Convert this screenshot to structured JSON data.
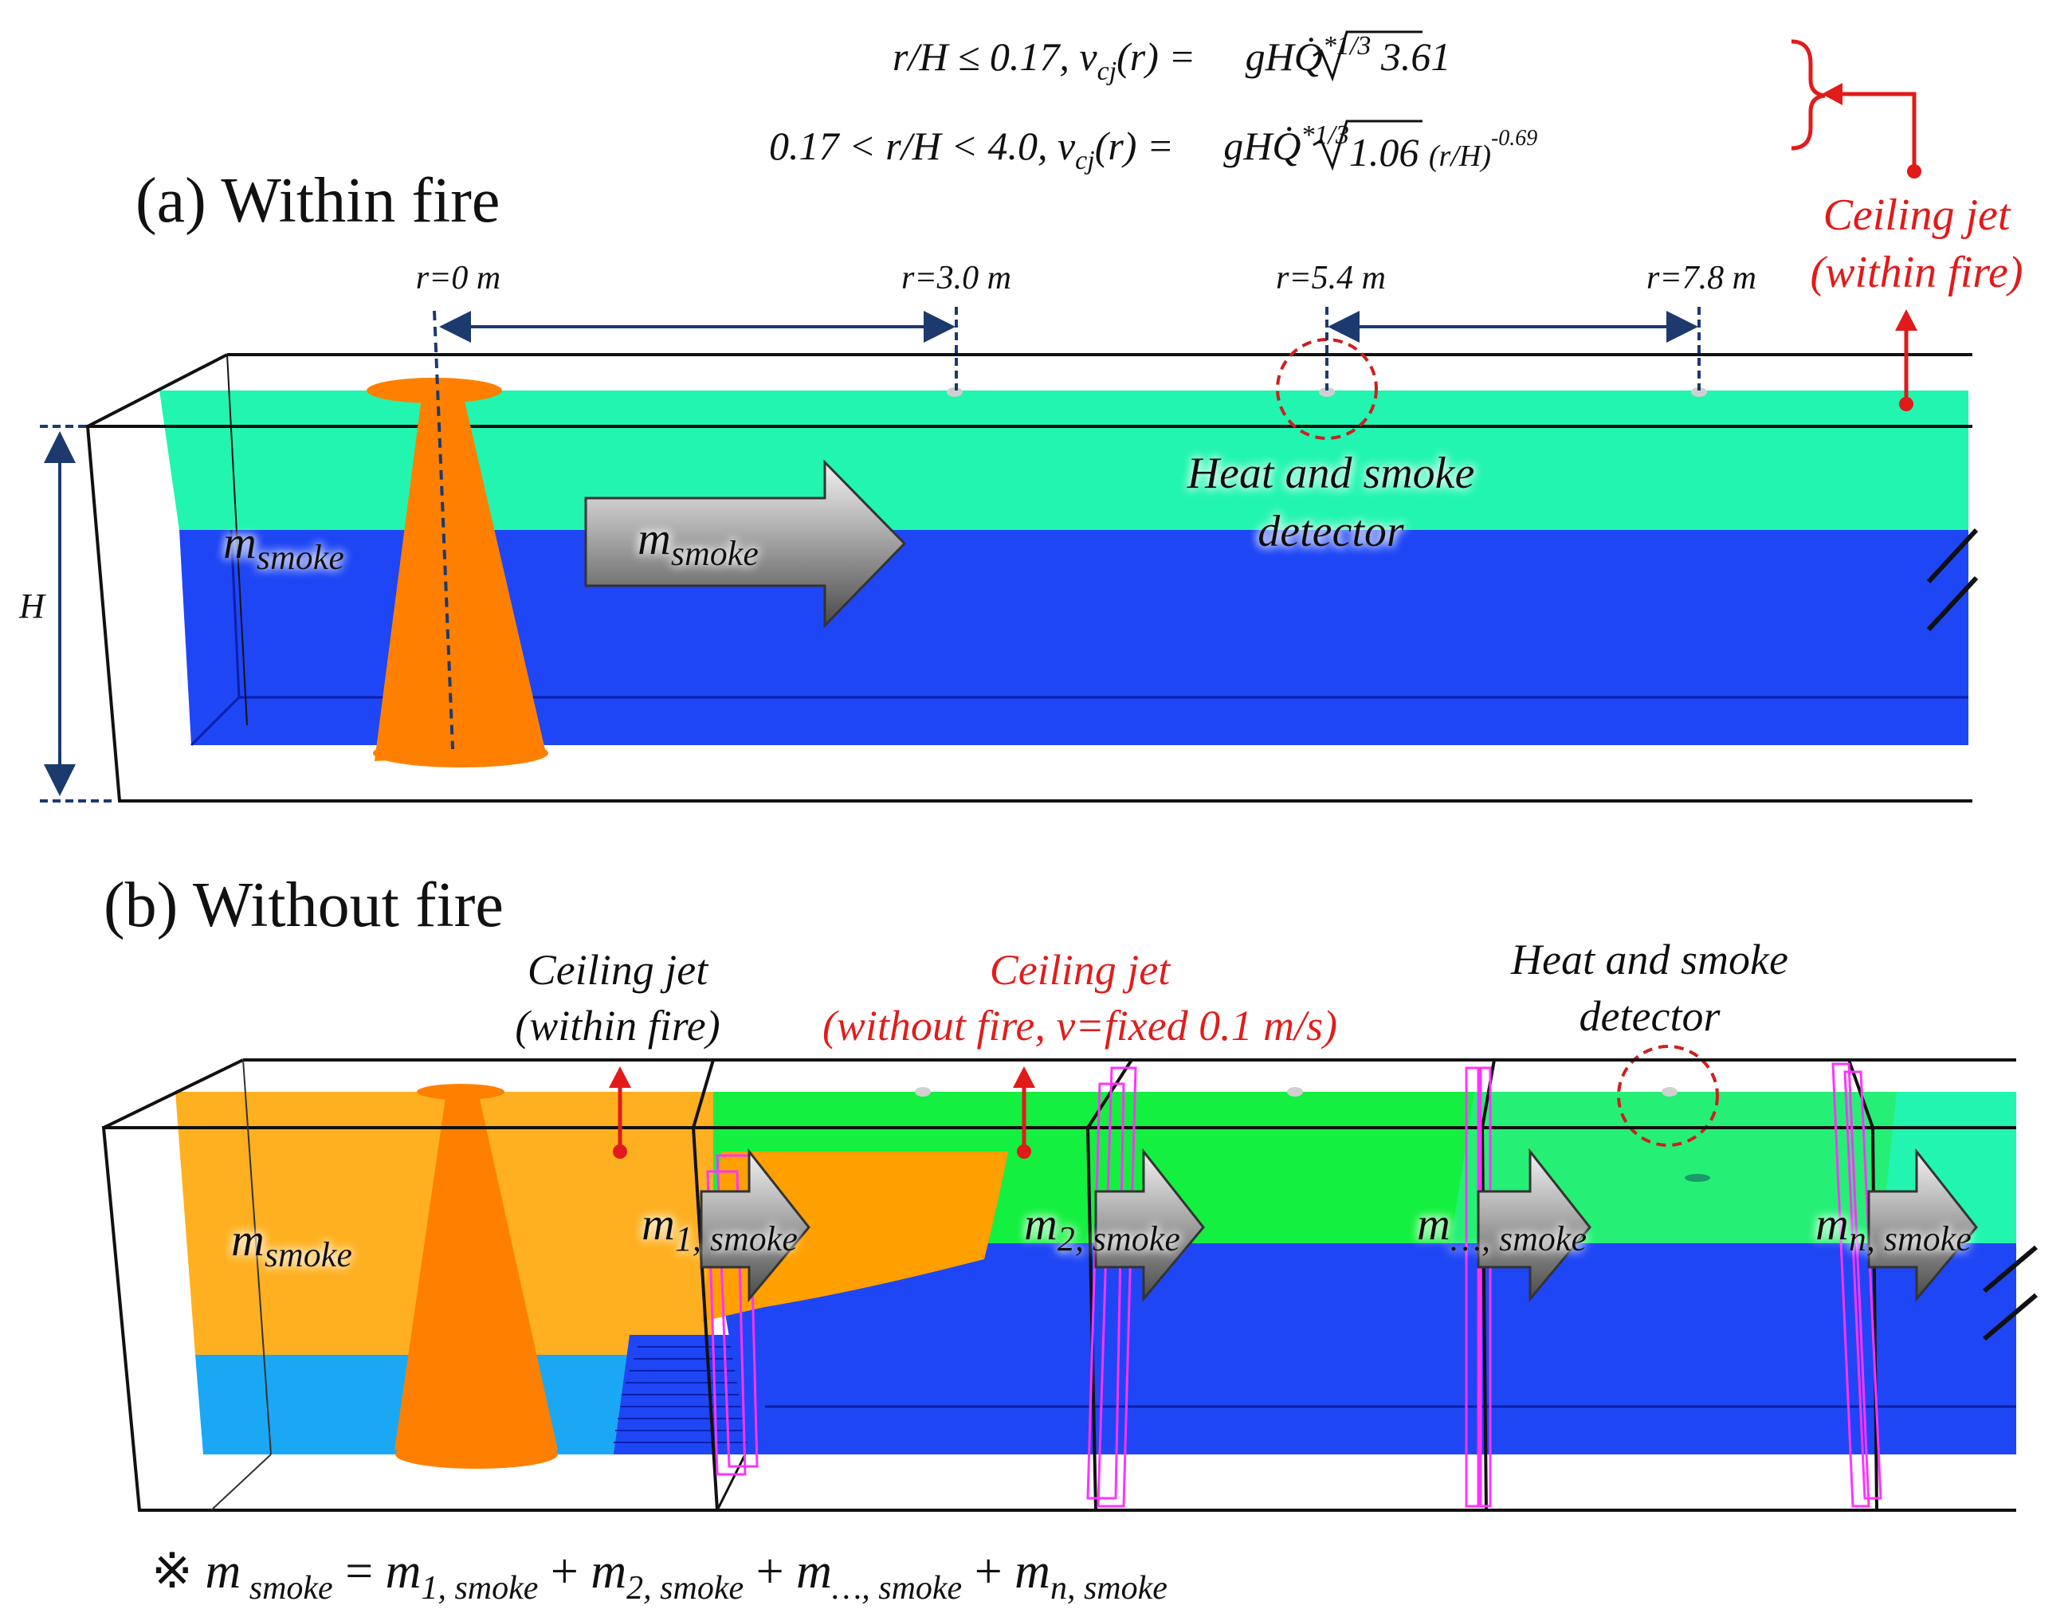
{
  "formulas": {
    "line1": {
      "cond": "r/H ≤ 0.17, ",
      "lhs": "v",
      "sub": "cj",
      "mid": "(r) = ",
      "rad": "gH",
      "q": "Q̇",
      "exp": "*1/3",
      "coef": " 3.61"
    },
    "line2": {
      "cond": "0.17 < r/H < 4.0,  ",
      "lhs": "v",
      "sub": "cj",
      "mid": "(r) = ",
      "rad": "gH",
      "q": "Q̇",
      "exp": "*1/3",
      "coef": "1.06 ",
      "tail": "(r/H)",
      "tail_exp": "-0.69"
    }
  },
  "panel_a": {
    "title": "(a) Within fire",
    "ceiling_jet_line1": "Ceiling jet",
    "ceiling_jet_line2": "(within fire)",
    "radii": [
      "r=0 m",
      "r=3.0 m",
      "r=5.4 m",
      "r=7.8 m"
    ],
    "detector_line1": "Heat and smoke",
    "detector_line2": "detector",
    "height_label": "H",
    "m_smoke_base": "m",
    "m_smoke_sub": "smoke"
  },
  "panel_b": {
    "title": "(b) Without fire",
    "cj_within_line1": "Ceiling jet",
    "cj_within_line2": "(within fire)",
    "cj_without_line1": "Ceiling jet",
    "cj_without_line2": "(without fire, v=fixed 0.1 m/s)",
    "detector_line1": "Heat and smoke",
    "detector_line2": "detector",
    "m_base": "m",
    "m_subs": [
      "smoke",
      "1, smoke",
      "2, smoke",
      "…, smoke",
      "n, smoke"
    ]
  },
  "footnote": {
    "mark": "※ ",
    "base": "m",
    "terms": [
      " smoke",
      "1, smoke",
      "2, smoke",
      "…, smoke",
      "n, smoke"
    ],
    "ops": [
      " = ",
      " + ",
      " + ",
      " + "
    ]
  },
  "colors": {
    "smoke_layer": "#22f5b0",
    "air_layer": "#1f46f5",
    "fire": "#ff8000",
    "smoke_orange": "#ffb020",
    "lower_cyan": "#1aa8f5",
    "smoke_green": "#14f040",
    "annotation_red": "#e21a1a",
    "dim_blue": "#1c3a6e",
    "sensor_pink": "#ff33ff"
  }
}
